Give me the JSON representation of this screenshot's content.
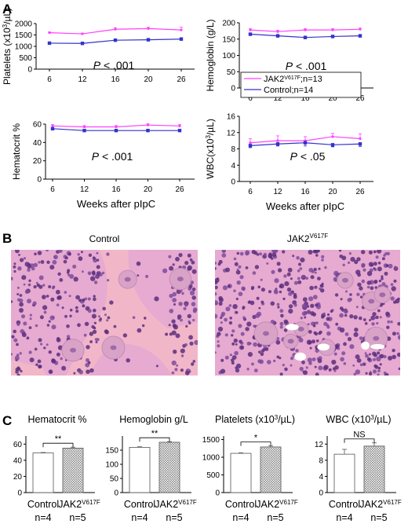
{
  "panels": {
    "a": "A",
    "b": "B",
    "c": "C"
  },
  "colors": {
    "jak2": "#ff40ff",
    "control": "#3333cc",
    "hatch": "#8a8a8a",
    "tissue": "#e7aad0",
    "bone": "#f2b6c9",
    "nuclei": "#5a2f7e"
  },
  "line_legend": [
    {
      "label": "JAK2",
      "sup": "V617F",
      "suffix": ";n=13"
    },
    {
      "label": "Control;n=14",
      "sup": "",
      "suffix": ""
    }
  ],
  "histology": {
    "control_title": {
      "label": "Control",
      "sup": ""
    },
    "jak_title": {
      "label": "JAK2",
      "sup": "V617F"
    }
  },
  "bar_groups": {
    "control": {
      "label": "Control",
      "n": "n=4"
    },
    "jak": {
      "label": "JAK2",
      "sup": "V617F",
      "n": "n=5"
    }
  },
  "chart_data": [
    {
      "type": "line",
      "panel": "A",
      "ylabel": "Platelets (x10^3/µL)",
      "xlabel": "",
      "x": [
        6,
        12,
        16,
        20,
        26
      ],
      "ylim": [
        0,
        2000
      ],
      "yticks": [
        0,
        500,
        1000,
        1500,
        2000
      ],
      "pvalue": "P < .001",
      "series": [
        {
          "name": "JAK2V617F;n=13",
          "values": [
            1600,
            1550,
            1750,
            1780,
            1720
          ],
          "errors": [
            30,
            30,
            70,
            60,
            120
          ]
        },
        {
          "name": "Control;n=14",
          "values": [
            1140,
            1130,
            1270,
            1290,
            1320
          ],
          "errors": [
            30,
            30,
            40,
            30,
            40
          ]
        }
      ]
    },
    {
      "type": "line",
      "panel": "A",
      "ylabel": "Hemoglobin (g/L)",
      "xlabel": "",
      "x": [
        6,
        12,
        16,
        20,
        26
      ],
      "ylim": [
        0,
        200
      ],
      "yticks": [
        0,
        50,
        100,
        150,
        200
      ],
      "pvalue": "P < .001",
      "series": [
        {
          "name": "JAK2V617F;n=13",
          "values": [
            178,
            173,
            178,
            178,
            180
          ],
          "errors": [
            4,
            4,
            4,
            4,
            4
          ]
        },
        {
          "name": "Control;n=14",
          "values": [
            165,
            160,
            155,
            158,
            160
          ],
          "errors": [
            4,
            4,
            4,
            4,
            4
          ]
        }
      ]
    },
    {
      "type": "line",
      "panel": "A",
      "ylabel": "Hematocrit %",
      "xlabel": "Weeks after pIpC",
      "x": [
        6,
        12,
        16,
        20,
        26
      ],
      "ylim": [
        0,
        60
      ],
      "yticks": [
        0,
        20,
        40,
        60
      ],
      "pvalue": "P < .001",
      "series": [
        {
          "name": "JAK2V617F;n=13",
          "values": [
            58,
            57,
            57,
            59,
            58
          ],
          "errors": [
            1.5,
            1.5,
            1.5,
            1.5,
            1.5
          ]
        },
        {
          "name": "Control;n=14",
          "values": [
            55,
            53,
            53,
            53,
            53
          ],
          "errors": [
            1,
            1,
            1,
            1,
            1
          ]
        }
      ]
    },
    {
      "type": "line",
      "panel": "A",
      "ylabel": "WBC(x10^3/µL)",
      "xlabel": "Weeks after pIpC",
      "x": [
        6,
        12,
        16,
        20,
        26
      ],
      "ylim": [
        0,
        16
      ],
      "yticks": [
        0,
        4,
        8,
        12,
        16
      ],
      "pvalue": "P < .05",
      "series": [
        {
          "name": "JAK2V617F;n=13",
          "values": [
            9.5,
            10,
            10,
            11,
            10.5
          ],
          "errors": [
            1.0,
            1.2,
            1.0,
            0.8,
            1.2
          ]
        },
        {
          "name": "Control;n=14",
          "values": [
            8.8,
            9.2,
            9.5,
            9.0,
            9.2
          ],
          "errors": [
            0.5,
            0.5,
            0.8,
            0.5,
            0.6
          ]
        }
      ]
    },
    {
      "type": "bar",
      "panel": "C",
      "title": "Hematocrit %",
      "categories": [
        "Control",
        "JAK2V617F"
      ],
      "values": [
        49,
        55
      ],
      "errors": [
        0.6,
        1.2
      ],
      "ylim": [
        0,
        70
      ],
      "yticks": [
        0,
        20,
        40,
        60
      ],
      "significance": "**"
    },
    {
      "type": "bar",
      "panel": "C",
      "title": "Hemoglobin g/L",
      "categories": [
        "Control",
        "JAK2V617F"
      ],
      "values": [
        160,
        178
      ],
      "errors": [
        2,
        2
      ],
      "ylim": [
        0,
        200
      ],
      "yticks": [
        0,
        50,
        100,
        150
      ],
      "significance": "**"
    },
    {
      "type": "bar",
      "panel": "C",
      "title": "Platelets (x10^3/µL)",
      "categories": [
        "Control",
        "JAK2V617F"
      ],
      "values": [
        1110,
        1290
      ],
      "errors": [
        15,
        30
      ],
      "ylim": [
        0,
        1600
      ],
      "yticks": [
        0,
        500,
        1000,
        1500
      ],
      "significance": "*"
    },
    {
      "type": "bar",
      "panel": "C",
      "title": "WBC (x10^3/µL)",
      "categories": [
        "Control",
        "JAK2V617F"
      ],
      "values": [
        9.5,
        11.5
      ],
      "errors": [
        1.2,
        0.8
      ],
      "ylim": [
        0,
        14
      ],
      "yticks": [
        0,
        4,
        8,
        12
      ],
      "significance": "NS"
    }
  ]
}
